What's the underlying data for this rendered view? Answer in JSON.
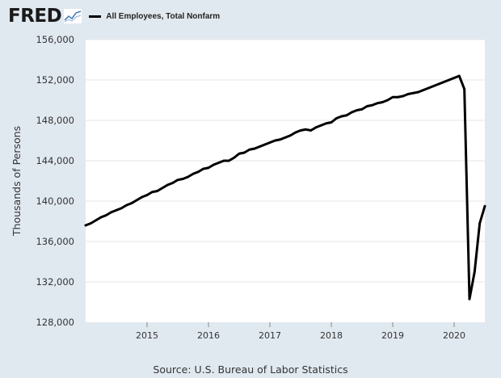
{
  "header": {
    "logo_text": "FRED",
    "legend_label": "All Employees, Total Nonfarm"
  },
  "source": "Source: U.S. Bureau of Labor Statistics",
  "colors": {
    "background": "#e1e9f0",
    "plot_background": "#ffffff",
    "line": "#000000",
    "gridline": "#e6e6e6"
  },
  "chart_data": {
    "type": "line",
    "title": "",
    "xlabel": "",
    "ylabel": "Thousands of Persons",
    "ylim": [
      128000,
      156000
    ],
    "xlim": [
      "2014-01",
      "2020-07"
    ],
    "y_ticks": [
      128000,
      132000,
      136000,
      140000,
      144000,
      148000,
      152000,
      156000
    ],
    "y_tick_labels": [
      "128,000",
      "132,000",
      "136,000",
      "140,000",
      "144,000",
      "148,000",
      "152,000",
      "156,000"
    ],
    "x_ticks": [
      "2015-01",
      "2016-01",
      "2017-01",
      "2018-01",
      "2019-01",
      "2020-01"
    ],
    "x_tick_labels": [
      "2015",
      "2016",
      "2017",
      "2018",
      "2019",
      "2020"
    ],
    "grid": true,
    "series": [
      {
        "name": "All Employees, Total Nonfarm",
        "x": [
          "2014-01",
          "2014-02",
          "2014-03",
          "2014-04",
          "2014-05",
          "2014-06",
          "2014-07",
          "2014-08",
          "2014-09",
          "2014-10",
          "2014-11",
          "2014-12",
          "2015-01",
          "2015-02",
          "2015-03",
          "2015-04",
          "2015-05",
          "2015-06",
          "2015-07",
          "2015-08",
          "2015-09",
          "2015-10",
          "2015-11",
          "2015-12",
          "2016-01",
          "2016-02",
          "2016-03",
          "2016-04",
          "2016-05",
          "2016-06",
          "2016-07",
          "2016-08",
          "2016-09",
          "2016-10",
          "2016-11",
          "2016-12",
          "2017-01",
          "2017-02",
          "2017-03",
          "2017-04",
          "2017-05",
          "2017-06",
          "2017-07",
          "2017-08",
          "2017-09",
          "2017-10",
          "2017-11",
          "2017-12",
          "2018-01",
          "2018-02",
          "2018-03",
          "2018-04",
          "2018-05",
          "2018-06",
          "2018-07",
          "2018-08",
          "2018-09",
          "2018-10",
          "2018-11",
          "2018-12",
          "2019-01",
          "2019-02",
          "2019-03",
          "2019-04",
          "2019-05",
          "2019-06",
          "2019-07",
          "2019-08",
          "2019-09",
          "2019-10",
          "2019-11",
          "2019-12",
          "2020-01",
          "2020-02",
          "2020-03",
          "2020-04",
          "2020-05",
          "2020-06",
          "2020-07"
        ],
        "values": [
          137600,
          137800,
          138100,
          138400,
          138600,
          138900,
          139100,
          139300,
          139600,
          139800,
          140100,
          140400,
          140600,
          140900,
          141000,
          141300,
          141600,
          141800,
          142100,
          142200,
          142400,
          142700,
          142900,
          143200,
          143300,
          143600,
          143800,
          144000,
          144000,
          144300,
          144700,
          144800,
          145100,
          145200,
          145400,
          145600,
          145800,
          146000,
          146100,
          146300,
          146500,
          146800,
          147000,
          147100,
          147000,
          147300,
          147500,
          147700,
          147800,
          148200,
          148400,
          148500,
          148800,
          149000,
          149100,
          149400,
          149500,
          149700,
          149800,
          150000,
          150300,
          150300,
          150400,
          150600,
          150700,
          150800,
          151000,
          151200,
          151400,
          151600,
          151800,
          152000,
          152200,
          152400,
          151100,
          130300,
          133000,
          137800,
          139500
        ]
      }
    ]
  }
}
